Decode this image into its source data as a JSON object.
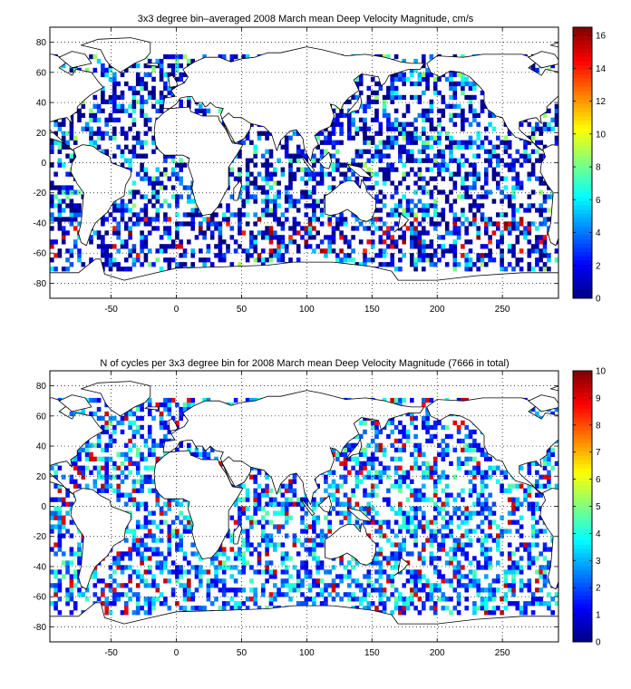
{
  "chart_data": [
    {
      "type": "heatmap",
      "title": "3x3 degree bin–averaged 2008 March mean Deep Velocity Magnitude, cm/s",
      "x_ticks": [
        "-50",
        "0",
        "50",
        "100",
        "150",
        "200",
        "250"
      ],
      "x_tick_values": [
        -50,
        0,
        50,
        100,
        150,
        200,
        250
      ],
      "y_ticks": [
        "80",
        "60",
        "40",
        "20",
        "0",
        "-20",
        "-40",
        "-60",
        "-80"
      ],
      "y_tick_values": [
        80,
        60,
        40,
        20,
        0,
        -20,
        -40,
        -60,
        -80
      ],
      "xlim": [
        -97,
        293
      ],
      "ylim": [
        -90,
        90
      ],
      "bin_size_deg": 3,
      "grid": true,
      "colormap": "jet",
      "colorbar_range": [
        0,
        16.5
      ],
      "colorbar_ticks": [
        "0",
        "2",
        "4",
        "6",
        "8",
        "10",
        "12",
        "14",
        "16"
      ],
      "colorbar_tick_values": [
        0,
        2,
        4,
        6,
        8,
        10,
        12,
        14,
        16
      ],
      "value_distribution": "mostly 0–6 cm/s, with higher values (8–16) along the Southern Ocean / Antarctic Circumpolar Current and the Gulf Stream region"
    },
    {
      "type": "heatmap",
      "title": "N of cycles per 3x3 degree bin for 2008 March mean Deep Velocity Magnitude (7666 in total)",
      "x_ticks": [
        "-50",
        "0",
        "50",
        "100",
        "150",
        "200",
        "250"
      ],
      "x_tick_values": [
        -50,
        0,
        50,
        100,
        150,
        200,
        250
      ],
      "y_ticks": [
        "80",
        "60",
        "40",
        "20",
        "0",
        "-20",
        "-40",
        "-60",
        "-80"
      ],
      "y_tick_values": [
        80,
        60,
        40,
        20,
        0,
        -20,
        -40,
        -60,
        -80
      ],
      "xlim": [
        -97,
        293
      ],
      "ylim": [
        -90,
        90
      ],
      "bin_size_deg": 3,
      "grid": true,
      "colormap": "jet",
      "colorbar_range": [
        0,
        10
      ],
      "colorbar_ticks": [
        "0",
        "1",
        "2",
        "3",
        "4",
        "5",
        "6",
        "7",
        "8",
        "9",
        "10"
      ],
      "colorbar_tick_values": [
        0,
        1,
        2,
        3,
        4,
        5,
        6,
        7,
        8,
        9,
        10
      ],
      "total_cycles": 7666,
      "value_distribution": "mostly 1–4 cycles per bin, scattered higher counts (5–10) in the subtropical gyres and eastern boundary regions"
    }
  ],
  "colors": {
    "background": "#ffffff",
    "axes": "#000000",
    "grid": "#000000",
    "land": "#ffffff"
  }
}
